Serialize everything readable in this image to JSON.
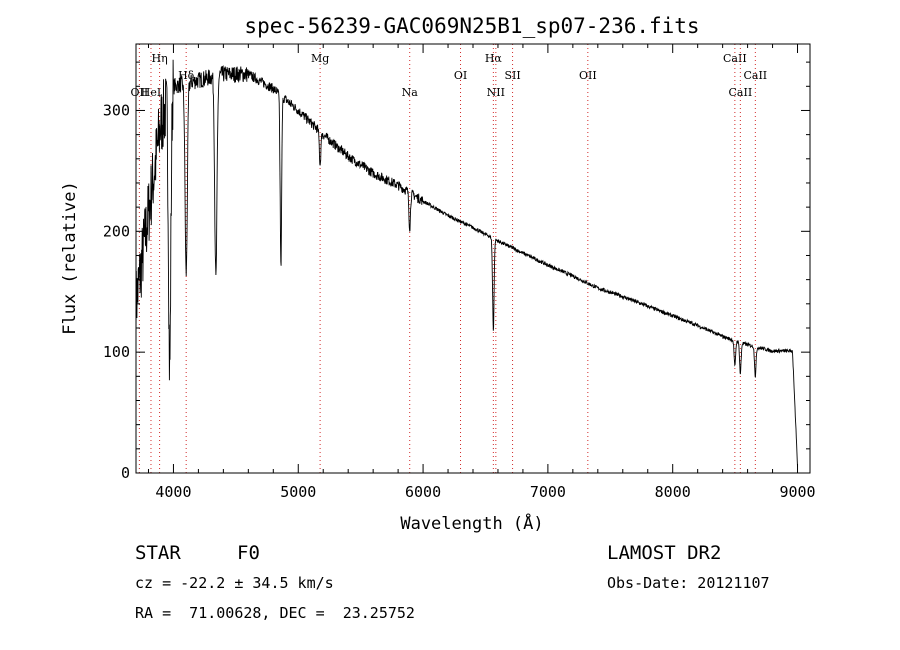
{
  "chart_data": {
    "type": "line",
    "title": "spec-56239-GAC069N25B1_sp07-236.fits",
    "xlabel": "Wavelength (Å)",
    "ylabel": "Flux (relative)",
    "xlim": [
      3700,
      9100
    ],
    "ylim": [
      0,
      355
    ],
    "xticks": [
      4000,
      5000,
      6000,
      7000,
      8000,
      9000
    ],
    "yticks": [
      0,
      100,
      200,
      300
    ],
    "continuum": {
      "x": [
        3700,
        3900,
        4000,
        4200,
        4400,
        4600,
        4800,
        5000,
        5200,
        5400,
        5600,
        5800,
        6000,
        6200,
        6400,
        6600,
        6800,
        7000,
        7200,
        7400,
        7600,
        7800,
        8000,
        8200,
        8400,
        8600,
        8800,
        8960,
        9000
      ],
      "y": [
        140,
        290,
        320,
        325,
        330,
        330,
        318,
        300,
        280,
        262,
        248,
        238,
        225,
        213,
        203,
        192,
        182,
        172,
        163,
        153,
        146,
        138,
        130,
        122,
        113,
        106,
        101,
        101,
        5
      ]
    },
    "absorption_lines": [
      {
        "x": 3970,
        "y": 85
      },
      {
        "x": 4102,
        "y": 165
      },
      {
        "x": 4340,
        "y": 160
      },
      {
        "x": 4861,
        "y": 170
      },
      {
        "x": 5175,
        "y": 255
      },
      {
        "x": 5893,
        "y": 203
      },
      {
        "x": 6563,
        "y": 118
      },
      {
        "x": 8498,
        "y": 88
      },
      {
        "x": 8542,
        "y": 82
      },
      {
        "x": 8662,
        "y": 80
      }
    ],
    "line_markers": [
      {
        "x": 3727,
        "label": "OII",
        "row": 3
      },
      {
        "x": 3820,
        "label": "HeI",
        "row": 3
      },
      {
        "x": 3889,
        "label": "Hη",
        "row": 1
      },
      {
        "x": 4102,
        "label": "Hδ",
        "row": 2
      },
      {
        "x": 5175,
        "label": "Mg",
        "row": 1
      },
      {
        "x": 5893,
        "label": "Na",
        "row": 3
      },
      {
        "x": 6300,
        "label": "OI",
        "row": 2
      },
      {
        "x": 6563,
        "label": "Hα",
        "row": 1
      },
      {
        "x": 6583,
        "label": "NII",
        "row": 3
      },
      {
        "x": 6717,
        "label": "SII",
        "row": 2
      },
      {
        "x": 7320,
        "label": "OII",
        "row": 2
      },
      {
        "x": 8498,
        "label": "CaII",
        "row": 1
      },
      {
        "x": 8542,
        "label": "CaII",
        "row": 3
      },
      {
        "x": 8662,
        "label": "CaII",
        "row": 2
      }
    ]
  },
  "info": {
    "object_class": "STAR",
    "subclass": "F0",
    "survey": "LAMOST DR2",
    "redshift_text": "cz = -22.2 ± 34.5 km/s",
    "obs_date_text": "Obs-Date: 20121107",
    "coords_text": "RA =  71.00628, DEC =  23.25752"
  },
  "colors": {
    "spectrum": "#000000",
    "marker_line": "#d22a2a",
    "axis": "#000000"
  }
}
